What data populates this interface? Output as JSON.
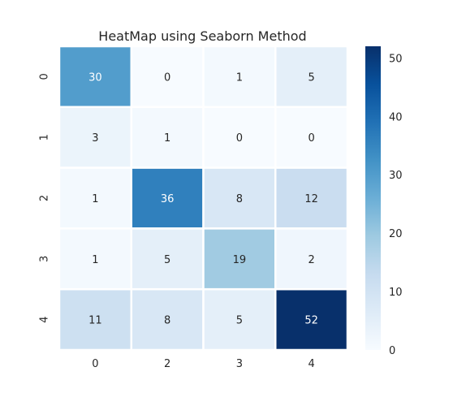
{
  "chart_data": {
    "type": "heatmap",
    "title": "HeatMap using Seaborn Method",
    "x_categories": [
      "0",
      "2",
      "3",
      "4"
    ],
    "y_categories": [
      "0",
      "1",
      "2",
      "3",
      "4"
    ],
    "values": [
      [
        30,
        0,
        1,
        5
      ],
      [
        3,
        1,
        0,
        0
      ],
      [
        1,
        36,
        8,
        12
      ],
      [
        1,
        5,
        19,
        2
      ],
      [
        11,
        8,
        5,
        52
      ]
    ],
    "colormap": "Blues",
    "vmin": 0,
    "vmax": 52,
    "colorbar_ticks": [
      0,
      10,
      20,
      30,
      40,
      50
    ],
    "annotate": true,
    "grid_line_color": "#ffffff",
    "xlabel": "",
    "ylabel": ""
  }
}
